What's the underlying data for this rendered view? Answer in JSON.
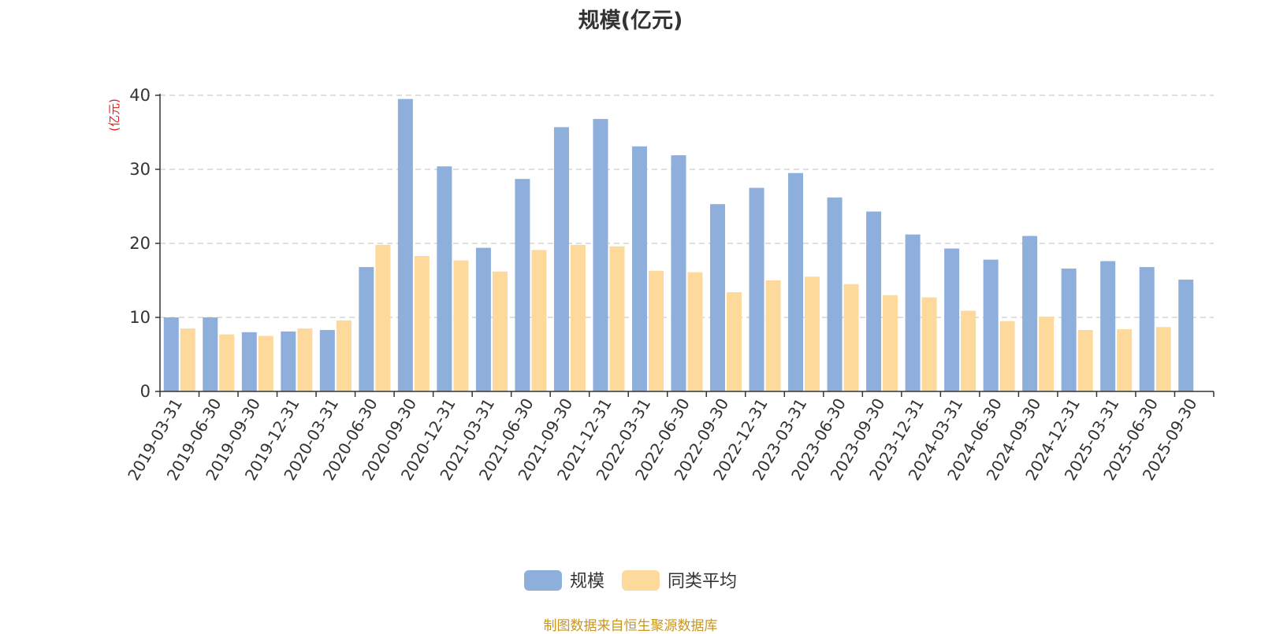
{
  "title": "规模(亿元)",
  "source_note": "制图数据来自恒生聚源数据库",
  "colors": {
    "series_main": "#8eaedb",
    "series_avg": "#fdd99b",
    "ylabel": "#e02020",
    "axis": "#333333",
    "grid": "#cccccc",
    "source": "#c8961e"
  },
  "chart_data": {
    "type": "bar",
    "title": "规模(亿元)",
    "ylabel": "(亿元)",
    "xlabel": "",
    "ylim": [
      0,
      40
    ],
    "yticks": [
      0,
      10,
      20,
      30,
      40
    ],
    "grid": true,
    "legend_position": "bottom-center",
    "categories": [
      "2019-03-31",
      "2019-06-30",
      "2019-09-30",
      "2019-12-31",
      "2020-03-31",
      "2020-06-30",
      "2020-09-30",
      "2020-12-31",
      "2021-03-31",
      "2021-06-30",
      "2021-09-30",
      "2021-12-31",
      "2022-03-31",
      "2022-06-30",
      "2022-09-30",
      "2022-12-31",
      "2023-03-31",
      "2023-06-30",
      "2023-09-30",
      "2023-12-31",
      "2024-03-31",
      "2024-06-30",
      "2024-09-30",
      "2024-12-31",
      "2025-03-31",
      "2025-06-30",
      "2025-09-30"
    ],
    "series": [
      {
        "name": "规模",
        "color": "#8eaedb",
        "values": [
          10.0,
          10.0,
          8.0,
          8.1,
          8.3,
          16.8,
          39.5,
          30.4,
          19.4,
          28.7,
          35.7,
          36.8,
          33.1,
          31.9,
          25.3,
          27.5,
          29.5,
          26.2,
          24.3,
          21.2,
          19.3,
          17.8,
          21.0,
          16.6,
          17.6,
          16.8,
          15.1
        ]
      },
      {
        "name": "同类平均",
        "color": "#fdd99b",
        "values": [
          8.5,
          7.7,
          7.5,
          8.5,
          9.6,
          19.8,
          18.3,
          17.7,
          16.2,
          19.1,
          19.8,
          19.6,
          16.3,
          16.1,
          13.4,
          15.0,
          15.5,
          14.5,
          13.0,
          12.7,
          10.9,
          9.5,
          10.1,
          8.3,
          8.4,
          8.7,
          null
        ]
      }
    ]
  }
}
